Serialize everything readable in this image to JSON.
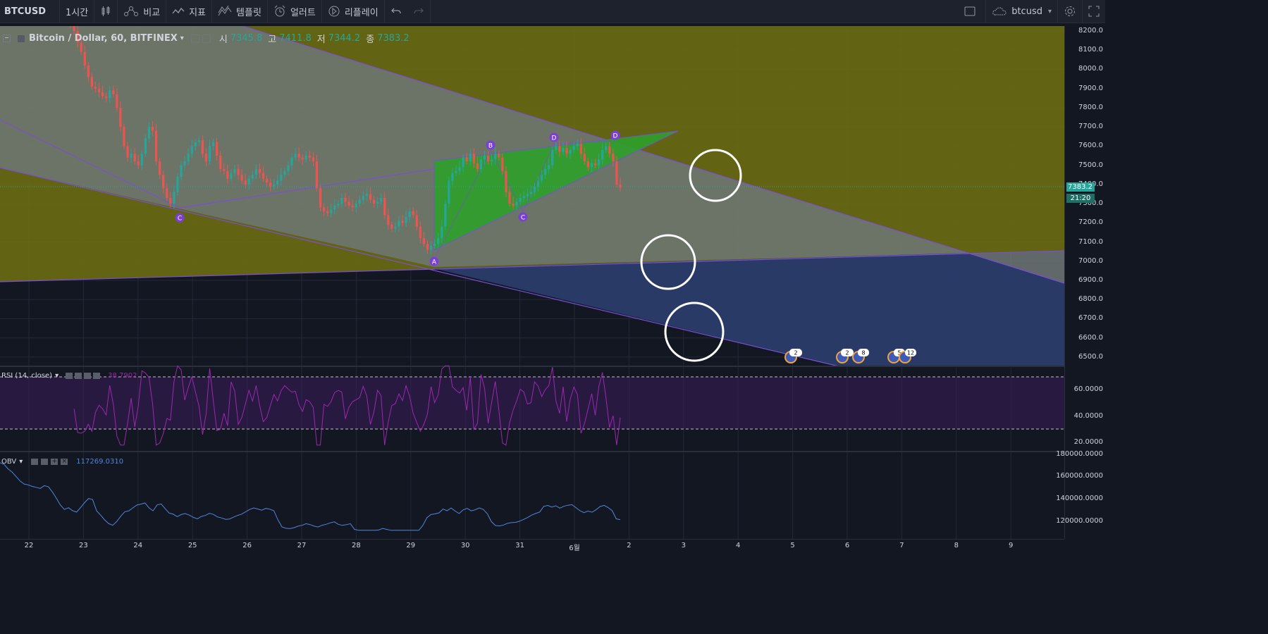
{
  "toolbar": {
    "symbol": "BTCUSD",
    "interval": "1시간",
    "compare": "비교",
    "indicators": "지표",
    "templates": "템플릿",
    "alerts": "얼러트",
    "replay": "리플레이",
    "layout_name": "btcusd",
    "icons": [
      "candles-icon",
      "compare-icon",
      "indicators-icon",
      "templates-icon",
      "alert-icon",
      "replay-icon",
      "undo-icon",
      "redo-icon",
      "fullscreen-box-icon",
      "cloud-icon",
      "settings-gear-icon",
      "expand-icon"
    ]
  },
  "main_legend": {
    "title": "Bitcoin / Dollar, 60, BITFINEX",
    "o_label": "시",
    "o": "7345.8",
    "h_label": "고",
    "h": "7411.8",
    "l_label": "저",
    "l": "7344.2",
    "c_label": "종",
    "c": "7383.2"
  },
  "price_axis": {
    "labels": [
      "8200.0",
      "8100.0",
      "8000.0",
      "7900.0",
      "7800.0",
      "7700.0",
      "7600.0",
      "7500.0",
      "7400.0",
      "7300.0",
      "7200.0",
      "7100.0",
      "7000.0",
      "6900.0",
      "6800.0",
      "6700.0",
      "6600.0",
      "6500.0"
    ],
    "current_price": "7383.2",
    "countdown": "21:20",
    "current_color": "#26a69a"
  },
  "pattern_points": [
    "A",
    "B",
    "C",
    "D",
    "C",
    "D"
  ],
  "event_badges": [
    "2",
    "2",
    "8",
    "5",
    "12"
  ],
  "rsi": {
    "label": "RSI (14, close)",
    "value": "38.7902",
    "axis": [
      "60.0000",
      "40.0000",
      "20.0000"
    ],
    "color": "#9c27b0"
  },
  "obv": {
    "label": "OBV",
    "value": "117269.0310",
    "axis": [
      "180000.0000",
      "160000.0000",
      "140000.0000",
      "120000.0000"
    ],
    "color": "#2962ff"
  },
  "time_axis": [
    "22",
    "23",
    "24",
    "25",
    "26",
    "27",
    "28",
    "29",
    "30",
    "31",
    "6월",
    "2",
    "3",
    "4",
    "5",
    "6",
    "7",
    "8",
    "9"
  ],
  "chart_data": {
    "type": "candlestick",
    "symbol": "Bitcoin / Dollar, 60, BITFINEX",
    "ylim": [
      6450,
      8250
    ],
    "closes": [
      8230,
      8200,
      8140,
      8090,
      8020,
      7960,
      7910,
      7900,
      7880,
      7860,
      7850,
      7890,
      7870,
      7800,
      7700,
      7600,
      7540,
      7560,
      7520,
      7500,
      7560,
      7640,
      7700,
      7680,
      7520,
      7450,
      7380,
      7330,
      7300,
      7360,
      7440,
      7500,
      7520,
      7560,
      7600,
      7620,
      7630,
      7560,
      7520,
      7600,
      7620,
      7550,
      7480,
      7470,
      7430,
      7460,
      7480,
      7450,
      7420,
      7400,
      7430,
      7450,
      7480,
      7460,
      7430,
      7410,
      7390,
      7400,
      7420,
      7450,
      7470,
      7500,
      7540,
      7560,
      7540,
      7530,
      7550,
      7540,
      7520,
      7380,
      7280,
      7260,
      7250,
      7270,
      7290,
      7300,
      7330,
      7310,
      7290,
      7280,
      7300,
      7320,
      7340,
      7350,
      7320,
      7300,
      7310,
      7330,
      7240,
      7190,
      7170,
      7180,
      7210,
      7200,
      7230,
      7260,
      7240,
      7180,
      7120,
      7090,
      7060,
      7080,
      7090,
      7120,
      7180,
      7300,
      7420,
      7460,
      7470,
      7490,
      7540,
      7520,
      7560,
      7510,
      7480,
      7530,
      7550,
      7520,
      7530,
      7560,
      7540,
      7470,
      7360,
      7300,
      7290,
      7310,
      7330,
      7340,
      7350,
      7360,
      7390,
      7420,
      7450,
      7480,
      7500,
      7580,
      7600,
      7570,
      7590,
      7560,
      7580,
      7600,
      7610,
      7560,
      7520,
      7490,
      7510,
      7500,
      7530,
      7580,
      7600,
      7560,
      7520,
      7400,
      7383
    ]
  }
}
